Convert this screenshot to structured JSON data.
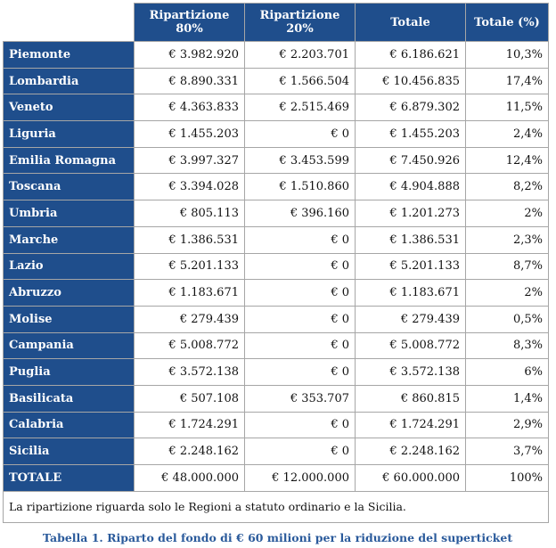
{
  "table": {
    "headers": [
      "Ripartizione 80%",
      "Ripartizione 20%",
      "Totale",
      "Totale (%)"
    ],
    "rows": [
      {
        "region": "Piemonte",
        "r80": "€ 3.982.920",
        "r20": "€ 2.203.701",
        "total": "€ 6.186.621",
        "pct": "10,3%"
      },
      {
        "region": "Lombardia",
        "r80": "€ 8.890.331",
        "r20": "€ 1.566.504",
        "total": "€ 10.456.835",
        "pct": "17,4%"
      },
      {
        "region": "Veneto",
        "r80": "€ 4.363.833",
        "r20": "€ 2.515.469",
        "total": "€ 6.879.302",
        "pct": "11,5%"
      },
      {
        "region": "Liguria",
        "r80": "€ 1.455.203",
        "r20": "€ 0",
        "total": "€ 1.455.203",
        "pct": "2,4%"
      },
      {
        "region": "Emilia Romagna",
        "r80": "€ 3.997.327",
        "r20": "€ 3.453.599",
        "total": "€ 7.450.926",
        "pct": "12,4%"
      },
      {
        "region": "Toscana",
        "r80": "€ 3.394.028",
        "r20": "€ 1.510.860",
        "total": "€ 4.904.888",
        "pct": "8,2%"
      },
      {
        "region": "Umbria",
        "r80": "€ 805.113",
        "r20": "€ 396.160",
        "total": "€ 1.201.273",
        "pct": "2%"
      },
      {
        "region": "Marche",
        "r80": "€ 1.386.531",
        "r20": "€ 0",
        "total": "€ 1.386.531",
        "pct": "2,3%"
      },
      {
        "region": "Lazio",
        "r80": "€ 5.201.133",
        "r20": "€ 0",
        "total": "€ 5.201.133",
        "pct": "8,7%"
      },
      {
        "region": "Abruzzo",
        "r80": "€ 1.183.671",
        "r20": "€ 0",
        "total": "€ 1.183.671",
        "pct": "2%"
      },
      {
        "region": "Molise",
        "r80": "€ 279.439",
        "r20": "€ 0",
        "total": "€ 279.439",
        "pct": "0,5%"
      },
      {
        "region": "Campania",
        "r80": "€ 5.008.772",
        "r20": "€ 0",
        "total": "€ 5.008.772",
        "pct": "8,3%"
      },
      {
        "region": "Puglia",
        "r80": "€ 3.572.138",
        "r20": "€ 0",
        "total": "€ 3.572.138",
        "pct": "6%"
      },
      {
        "region": "Basilicata",
        "r80": "€ 507.108",
        "r20": "€ 353.707",
        "total": "€ 860.815",
        "pct": "1,4%"
      },
      {
        "region": "Calabria",
        "r80": "€ 1.724.291",
        "r20": "€ 0",
        "total": "€ 1.724.291",
        "pct": "2,9%"
      },
      {
        "region": "Sicilia",
        "r80": "€ 2.248.162",
        "r20": "€ 0",
        "total": "€ 2.248.162",
        "pct": "3,7%"
      },
      {
        "region": "TOTALE",
        "r80": "€ 48.000.000",
        "r20": "€ 12.000.000",
        "total": "€ 60.000.000",
        "pct": "100%"
      }
    ],
    "note": "La ripartizione riguarda solo le Regioni a statuto ordinario e la Sicilia."
  },
  "caption": "Tabella 1. Riparto del fondo di € 60 milioni per la riduzione del superticket",
  "colors": {
    "header_bg": "#1f4e8c",
    "header_text": "#ffffff",
    "caption_text": "#2a5a9b",
    "border": "#a6a6a6"
  }
}
